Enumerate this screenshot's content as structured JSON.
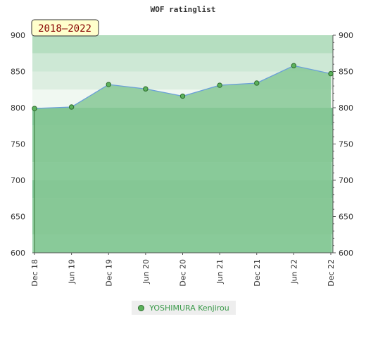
{
  "chart_data": {
    "type": "area",
    "title": "WOF ratinglist",
    "period_badge": "2018–2022",
    "categories": [
      "Dec 18",
      "Jun 19",
      "Dec 19",
      "Jun 20",
      "Dec 20",
      "Jun 21",
      "Dec 21",
      "Jun 22",
      "Dec 22"
    ],
    "series": [
      {
        "name": "YOSHIMURA Kenjirou",
        "values": [
          799,
          801,
          832,
          826,
          816,
          831,
          834,
          858,
          847
        ]
      }
    ],
    "ylim": [
      600,
      900
    ],
    "yticks": [
      600,
      650,
      700,
      750,
      800,
      850,
      900
    ],
    "y_axis_right": true,
    "legend_position": "bottom",
    "colors": {
      "line": "#6a9fd8",
      "area": "#86c895",
      "marker_fill": "#5cb25c",
      "marker_stroke": "#2c6a2c",
      "badge_bg": "#ffffcc",
      "badge_text": "#880000"
    }
  }
}
